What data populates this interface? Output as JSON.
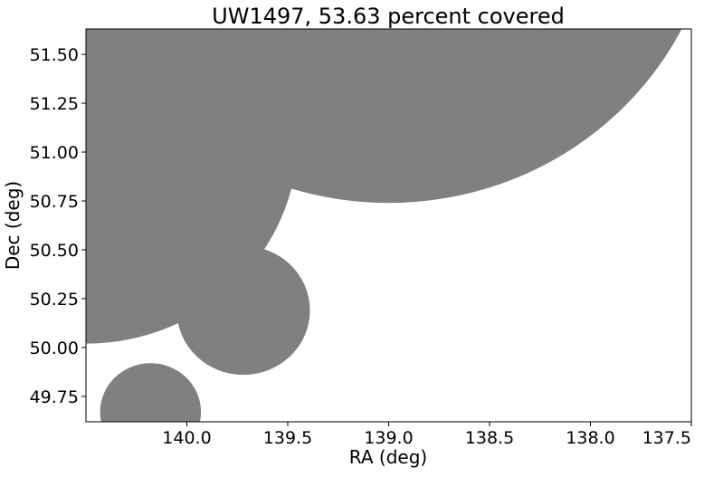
{
  "chart_data": {
    "type": "area",
    "title": "UW1497, 53.63 percent covered",
    "xlabel": "RA (deg)",
    "ylabel": "Dec (deg)",
    "xlim": [
      140.5,
      137.5
    ],
    "ylim": [
      49.62,
      51.63
    ],
    "x_inverted": true,
    "x_ticks": [
      140.0,
      139.5,
      139.0,
      138.5,
      138.0,
      137.5
    ],
    "x_tick_labels": [
      "140.0",
      "139.5",
      "139.0",
      "138.5",
      "138.0",
      "137.5"
    ],
    "y_ticks": [
      49.75,
      50.0,
      50.25,
      50.5,
      50.75,
      51.0,
      51.25,
      51.5
    ],
    "y_tick_labels": [
      "49.75",
      "50.00",
      "50.25",
      "50.50",
      "50.75",
      "51.00",
      "51.25",
      "51.50"
    ],
    "grid": false,
    "fill_color": "#808080",
    "coverage_percent": 53.63,
    "covered_regions": [
      {
        "shape": "circle",
        "center_ra": 139.0,
        "center_dec": 52.37,
        "radius_deg": 1.63
      },
      {
        "shape": "circle",
        "center_ra": 140.5,
        "center_dec": 51.07,
        "radius_deg": 1.05
      },
      {
        "shape": "circle",
        "center_ra": 139.72,
        "center_dec": 50.19,
        "radius_deg": 0.33
      },
      {
        "shape": "circle",
        "center_ra": 140.18,
        "center_dec": 49.67,
        "radius_deg": 0.25
      }
    ]
  }
}
